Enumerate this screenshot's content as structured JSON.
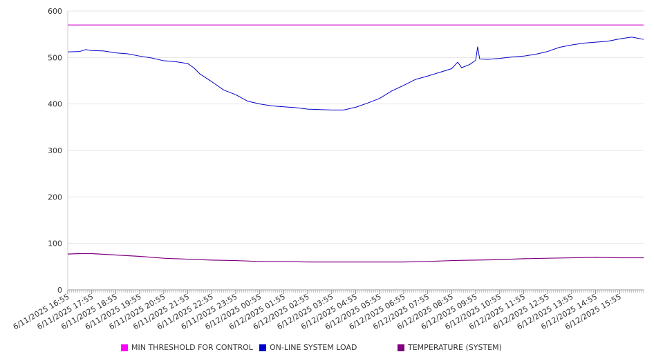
{
  "chart_data": {
    "type": "line",
    "title": "",
    "xlabel": "",
    "ylabel": "",
    "ylim": [
      0,
      600
    ],
    "yticks": [
      0,
      100,
      200,
      300,
      400,
      500,
      600
    ],
    "grid": true,
    "legend_position": "bottom",
    "x_tick_labels": [
      "6/11/2025 16:55",
      "6/11/2025 17:55",
      "6/11/2025 18:55",
      "6/11/2025 19:55",
      "6/11/2025 20:55",
      "6/11/2025 21:55",
      "6/11/2025 22:55",
      "6/11/2025 23:55",
      "6/12/2025 00:55",
      "6/12/2025 01:55",
      "6/12/2025 02:55",
      "6/12/2025 03:55",
      "6/12/2025 04:55",
      "6/12/2025 05:55",
      "6/12/2025 06:55",
      "6/12/2025 07:55",
      "6/12/2025 08:55",
      "6/12/2025 09:55",
      "6/12/2025 10:55",
      "6/12/2025 11:55",
      "6/12/2025 12:55",
      "6/12/2025 13:55",
      "6/12/2025 14:55",
      "6/12/2025 15:55"
    ],
    "x_range": [
      "6/11/2025 16:55",
      "6/12/2025 16:55"
    ],
    "series": [
      {
        "name": "MIN THRESHOLD FOR CONTROL",
        "color": "#cc00cc",
        "points": [
          [
            "6/11/2025 16:55",
            570
          ],
          [
            "6/12/2025 16:55",
            570
          ]
        ]
      },
      {
        "name": "ON-LINE SYSTEM LOAD",
        "color": "#0000cc",
        "points": [
          [
            "6/11/2025 16:55",
            512
          ],
          [
            "6/11/2025 17:25",
            513
          ],
          [
            "6/11/2025 17:40",
            517
          ],
          [
            "6/11/2025 17:55",
            515
          ],
          [
            "6/11/2025 18:25",
            514
          ],
          [
            "6/11/2025 18:55",
            510
          ],
          [
            "6/11/2025 19:25",
            508
          ],
          [
            "6/11/2025 19:55",
            503
          ],
          [
            "6/11/2025 20:25",
            499
          ],
          [
            "6/11/2025 20:55",
            493
          ],
          [
            "6/11/2025 21:25",
            491
          ],
          [
            "6/11/2025 21:55",
            487
          ],
          [
            "6/11/2025 22:10",
            478
          ],
          [
            "6/11/2025 22:25",
            465
          ],
          [
            "6/11/2025 22:55",
            448
          ],
          [
            "6/11/2025 23:25",
            430
          ],
          [
            "6/11/2025 23:55",
            420
          ],
          [
            "6/12/2025 00:25",
            406
          ],
          [
            "6/12/2025 00:55",
            400
          ],
          [
            "6/12/2025 01:25",
            396
          ],
          [
            "6/12/2025 01:55",
            394
          ],
          [
            "6/12/2025 02:25",
            392
          ],
          [
            "6/12/2025 02:55",
            389
          ],
          [
            "6/12/2025 03:25",
            388
          ],
          [
            "6/12/2025 03:55",
            387
          ],
          [
            "6/12/2025 04:25",
            387
          ],
          [
            "6/12/2025 04:55",
            393
          ],
          [
            "6/12/2025 05:25",
            402
          ],
          [
            "6/12/2025 05:55",
            412
          ],
          [
            "6/12/2025 06:25",
            428
          ],
          [
            "6/12/2025 06:55",
            440
          ],
          [
            "6/12/2025 07:25",
            453
          ],
          [
            "6/12/2025 07:55",
            460
          ],
          [
            "6/12/2025 08:25",
            468
          ],
          [
            "6/12/2025 08:55",
            476
          ],
          [
            "6/12/2025 09:10",
            490
          ],
          [
            "6/12/2025 09:20",
            478
          ],
          [
            "6/12/2025 09:40",
            485
          ],
          [
            "6/12/2025 09:55",
            494
          ],
          [
            "6/12/2025 10:00",
            523
          ],
          [
            "6/12/2025 10:05",
            497
          ],
          [
            "6/12/2025 10:25",
            496
          ],
          [
            "6/12/2025 10:55",
            498
          ],
          [
            "6/12/2025 11:25",
            501
          ],
          [
            "6/12/2025 11:55",
            503
          ],
          [
            "6/12/2025 12:25",
            507
          ],
          [
            "6/12/2025 12:55",
            513
          ],
          [
            "6/12/2025 13:25",
            522
          ],
          [
            "6/12/2025 13:55",
            527
          ],
          [
            "6/12/2025 14:25",
            531
          ],
          [
            "6/12/2025 14:55",
            533
          ],
          [
            "6/12/2025 15:25",
            535
          ],
          [
            "6/12/2025 15:55",
            540
          ],
          [
            "6/12/2025 16:25",
            544
          ],
          [
            "6/12/2025 16:55",
            539
          ]
        ]
      },
      {
        "name": "TEMPERATURE (SYSTEM)",
        "color": "#800080",
        "points": [
          [
            "6/11/2025 16:55",
            77
          ],
          [
            "6/11/2025 17:25",
            78
          ],
          [
            "6/11/2025 17:55",
            78
          ],
          [
            "6/11/2025 18:55",
            75
          ],
          [
            "6/11/2025 19:55",
            72
          ],
          [
            "6/11/2025 20:55",
            68
          ],
          [
            "6/11/2025 21:55",
            66
          ],
          [
            "6/11/2025 22:55",
            64
          ],
          [
            "6/11/2025 23:55",
            63
          ],
          [
            "6/12/2025 00:55",
            61
          ],
          [
            "6/12/2025 01:55",
            61
          ],
          [
            "6/12/2025 02:55",
            60
          ],
          [
            "6/12/2025 03:55",
            60
          ],
          [
            "6/12/2025 04:55",
            60
          ],
          [
            "6/12/2025 05:55",
            60
          ],
          [
            "6/12/2025 06:55",
            60
          ],
          [
            "6/12/2025 07:55",
            61
          ],
          [
            "6/12/2025 08:55",
            63
          ],
          [
            "6/12/2025 09:55",
            64
          ],
          [
            "6/12/2025 10:55",
            65
          ],
          [
            "6/12/2025 11:55",
            67
          ],
          [
            "6/12/2025 12:55",
            68
          ],
          [
            "6/12/2025 13:55",
            69
          ],
          [
            "6/12/2025 14:55",
            70
          ],
          [
            "6/12/2025 15:55",
            69
          ],
          [
            "6/12/2025 16:55",
            69
          ]
        ]
      }
    ]
  }
}
